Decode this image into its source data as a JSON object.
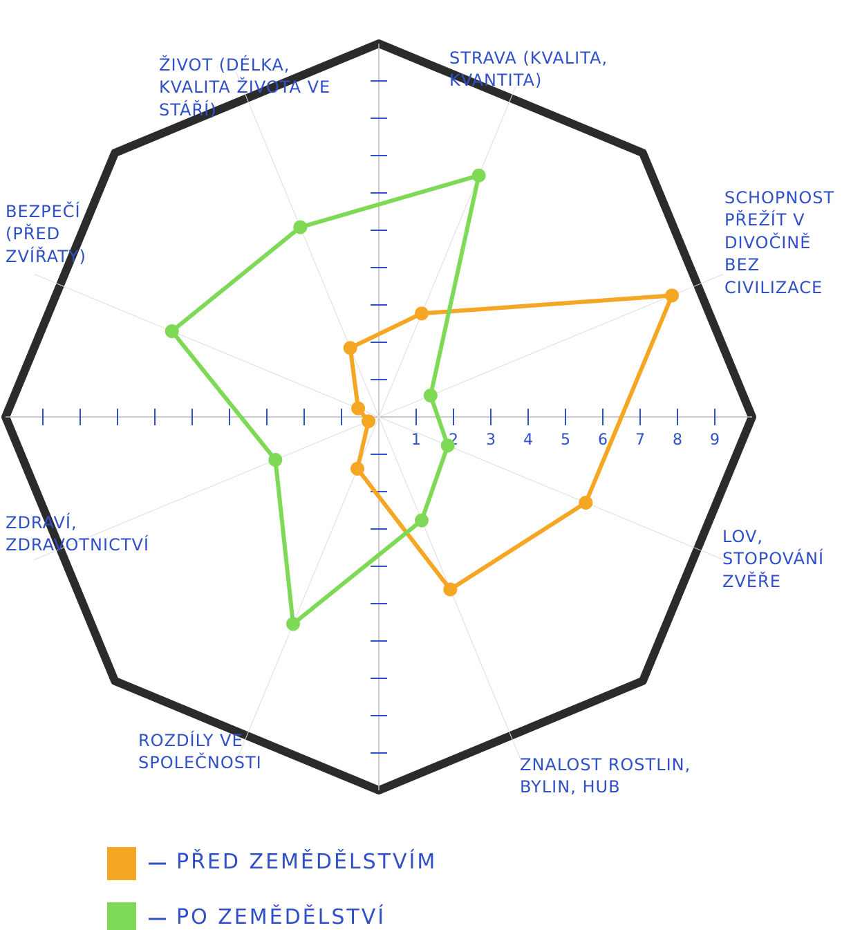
{
  "chart_data": {
    "type": "radar",
    "categories": [
      "ŽIVOT (DÉLKA, KVALITA ŽIVOTA VE STÁŘÍ)",
      "STRAVA (KVALITA, KVANTITA)",
      "SCHOPNOST PŘEŽÍT V DIVOČINĚ BEZ CIVILIZACE",
      "LOV, STOPOVÁNÍ ZVĚŘE",
      "ZNALOST ROSTLIN, BYLIN, HUB",
      "ROZDÍLY VE SPOLEČNOSTI",
      "ZDRAVÍ, ZDRAVOTNICTVÍ",
      "BEZPEČÍ (PŘED ZVÍŘATY)"
    ],
    "series": [
      {
        "name": "PŘED ZEMĚDĚLSTVÍM",
        "color": "#f5a623",
        "values": [
          2,
          3,
          8.5,
          6,
          5,
          1.5,
          0.3,
          0.6
        ]
      },
      {
        "name": "PO ZEMĚDĚLSTVÍ",
        "color": "#7ed957",
        "values": [
          5.5,
          7,
          1.5,
          2,
          3,
          6,
          3,
          6
        ]
      }
    ],
    "rlim": [
      0,
      10
    ],
    "rticks": [
      1,
      2,
      3,
      4,
      5,
      6,
      7,
      8,
      9
    ]
  }
}
